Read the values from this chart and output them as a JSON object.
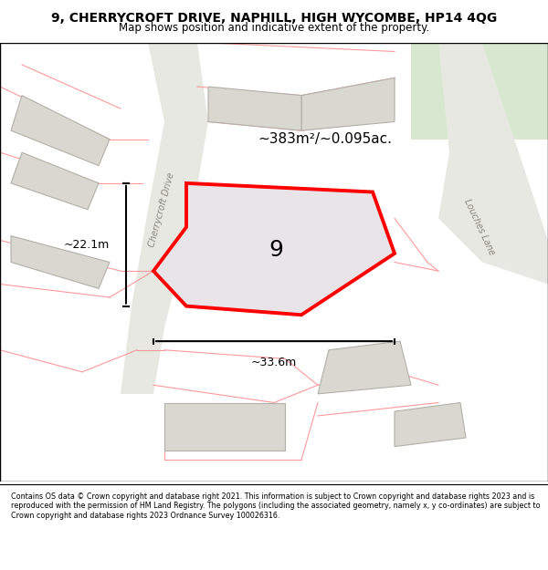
{
  "title_line1": "9, CHERRYCROFT DRIVE, NAPHILL, HIGH WYCOMBE, HP14 4QG",
  "title_line2": "Map shows position and indicative extent of the property.",
  "footer_text": "Contains OS data © Crown copyright and database right 2021. This information is subject to Crown copyright and database rights 2023 and is reproduced with the permission of HM Land Registry. The polygons (including the associated geometry, namely x, y co-ordinates) are subject to Crown copyright and database rights 2023 Ordnance Survey 100026316.",
  "bg_color": "#f5f5f0",
  "map_bg": "#f0f0eb",
  "road_color": "#e8e8e8",
  "building_fill": "#d8d8d0",
  "building_edge": "#b0b0a8",
  "plot_fill": "#e8e4e8",
  "plot_edge": "#ff0000",
  "plot_lw": 2.8,
  "pink_road_color": "#ff9999",
  "pink_road_lw": 0.8,
  "grey_road_color": "#c0c0b8",
  "area_label": "~383m²/~0.095ac.",
  "number_label": "9",
  "width_label": "~33.6m",
  "height_label": "~22.1m",
  "green_area_color": "#d8e8d0",
  "figsize": [
    6.0,
    6.25
  ],
  "dpi": 100
}
